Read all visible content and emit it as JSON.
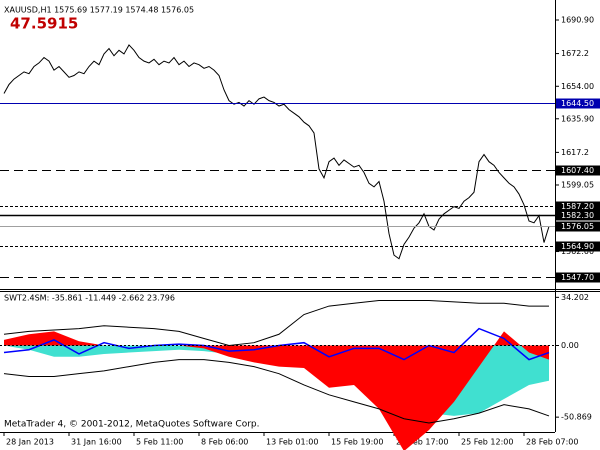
{
  "chart_data": [
    {
      "type": "line",
      "title": "XAUUSD,H1  1575.69 1577.19 1574.48 1576.05",
      "subtitle": "47.5915",
      "color": "#000000",
      "categories": [
        "28 Jan 2013",
        null,
        null,
        null,
        null,
        null,
        null,
        null,
        null,
        null,
        null,
        null,
        null,
        "31 Jan 16:00",
        null,
        null,
        null,
        null,
        null,
        null,
        null,
        null,
        null,
        null,
        null,
        null,
        "5 Feb 11:00",
        null,
        null,
        null,
        null,
        null,
        null,
        null,
        null,
        null,
        null,
        null,
        null,
        "8 Feb 06:00",
        null,
        null,
        null,
        null,
        null,
        null,
        null,
        null,
        null,
        null,
        null,
        null,
        "13 Feb 01:00",
        null,
        null,
        null,
        null,
        null,
        null,
        null,
        null,
        null,
        null,
        null,
        null,
        "15 Feb 19:00",
        null,
        null,
        null,
        null,
        null,
        null,
        null,
        null,
        null,
        null,
        null,
        null,
        "20 Feb 17:00",
        null,
        null,
        null,
        null,
        null,
        null,
        null,
        null,
        null,
        null,
        null,
        null,
        "25 Feb 12:00",
        null,
        null,
        null,
        null,
        null,
        null,
        null,
        null,
        null,
        null,
        null,
        null,
        "28 Feb 07:00",
        null,
        null,
        null,
        null,
        null
      ],
      "values": [
        1650,
        1655,
        1658,
        1660,
        1662,
        1661,
        1665,
        1667,
        1670,
        1668,
        1663,
        1665,
        1662,
        1659,
        1660,
        1662,
        1661,
        1665,
        1668,
        1666,
        1672,
        1675,
        1671,
        1674,
        1672,
        1677,
        1674,
        1670,
        1668,
        1667,
        1669,
        1666,
        1668,
        1667,
        1670,
        1666,
        1668,
        1665,
        1667,
        1666,
        1664,
        1665,
        1663,
        1660,
        1652,
        1646,
        1644,
        1645,
        1643,
        1646,
        1644,
        1647,
        1648,
        1646,
        1645,
        1643,
        1644,
        1641,
        1639,
        1637,
        1634,
        1632,
        1628,
        1608,
        1603,
        1612,
        1614,
        1610,
        1613,
        1611,
        1609,
        1610,
        1606,
        1600,
        1598,
        1601,
        1590,
        1572,
        1560,
        1558,
        1566,
        1570,
        1575,
        1578,
        1583,
        1576,
        1574,
        1580,
        1583,
        1585,
        1587,
        1586,
        1590,
        1592,
        1595,
        1612,
        1616,
        1612,
        1610,
        1606,
        1603,
        1600,
        1598,
        1594,
        1588,
        1579,
        1578,
        1582,
        1567,
        1576
      ],
      "ylim": [
        1541.7,
        1699.8
      ],
      "yticks": [
        {
          "value": 1690.9,
          "label": "1690.90"
        },
        1672.2,
        {
          "value": 1654,
          "label": "1654.00"
        },
        {
          "value": 1635.9,
          "label": "1635.90"
        },
        1617.2,
        1599.05,
        {
          "value": 1562,
          "label": "1562.00"
        }
      ],
      "levels": [
        {
          "value": 1644.5,
          "label": "1644.50",
          "color": "#0000b0",
          "dash": "solid"
        },
        {
          "value": 1607.4,
          "label": "1607.40",
          "color": "#000000",
          "dash": "long"
        },
        {
          "value": 1587.2,
          "label": "1587.20",
          "color": "#000000",
          "dash": "short"
        },
        {
          "value": 1582.3,
          "label": "1582.30",
          "color": "#000000",
          "dash": "solid"
        },
        {
          "value": 1576.05,
          "label": "1576.05",
          "color": "#a0a0a0",
          "dash": "solid"
        },
        {
          "value": 1564.9,
          "label": "1564.90",
          "color": "#000000",
          "dash": "short"
        },
        {
          "value": 1547.7,
          "label": "1547.70",
          "color": "#000000",
          "dash": "long"
        }
      ]
    },
    {
      "type": "area",
      "title": "SWT2.4SM: -35.861 -11.449 -2.662 23.796",
      "annotation": "MetaTrader 4, © 2001-2012, MetaQuotes Software Corp.",
      "x": [
        0,
        5,
        10,
        15,
        20,
        25,
        30,
        35,
        40,
        45,
        50,
        55,
        60,
        65,
        70,
        75,
        80,
        85,
        90,
        95,
        100,
        105,
        109
      ],
      "ylim": [
        -60,
        38
      ],
      "yticks": [
        34.202,
        {
          "value": 0,
          "label": "0.00"
        },
        -50.869
      ],
      "series": [
        {
          "kind": "area",
          "color": "#40e0d0",
          "values": [
            0,
            -3,
            -8,
            -8,
            -6,
            -5,
            -4,
            -3,
            -4,
            -6,
            -8,
            -12,
            -15,
            -22,
            -28,
            -35,
            -42,
            -48,
            -50,
            -48,
            -38,
            -28,
            -25
          ]
        },
        {
          "kind": "area",
          "color": "#ff0000",
          "values": [
            4,
            8,
            10,
            3,
            0,
            0,
            0,
            0,
            -2,
            -8,
            -12,
            -15,
            -16,
            -30,
            -28,
            -45,
            -75,
            -60,
            -40,
            -15,
            10,
            -5,
            -10
          ]
        },
        {
          "kind": "line",
          "color": "#000000",
          "values": [
            8,
            10,
            11,
            12,
            14,
            13,
            12,
            10,
            5,
            0,
            2,
            8,
            22,
            28,
            30,
            32,
            32,
            32,
            31,
            30,
            30,
            28,
            28
          ]
        },
        {
          "kind": "line",
          "color": "#000000",
          "values": [
            -20,
            -22,
            -22,
            -20,
            -18,
            -15,
            -12,
            -10,
            -10,
            -12,
            -15,
            -20,
            -28,
            -35,
            -40,
            -45,
            -52,
            -55,
            -52,
            -48,
            -42,
            -45,
            -50
          ]
        },
        {
          "kind": "line",
          "color": "#0000ff",
          "values": [
            -5,
            -3,
            4,
            -6,
            2,
            -2,
            0,
            1,
            0,
            -4,
            -3,
            0,
            2,
            -8,
            -2,
            -2,
            -10,
            0,
            -5,
            12,
            5,
            -10,
            -5
          ]
        }
      ]
    }
  ]
}
